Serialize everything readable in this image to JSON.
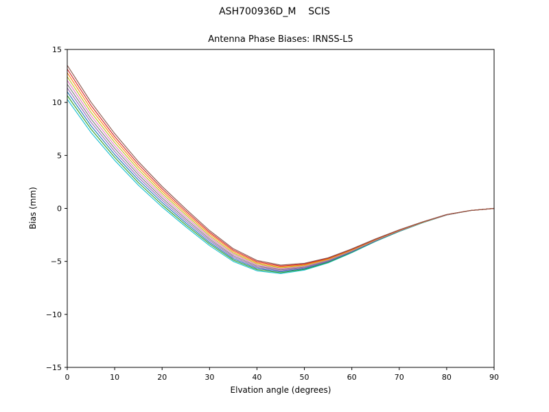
{
  "chart_data": {
    "type": "line",
    "suptitle": "ASH700936D_M    SCIS",
    "title": "Antenna Phase Biases: IRNSS-L5",
    "xlabel": "Elvation angle (degrees)",
    "ylabel": "Bias (mm)",
    "xlim": [
      0,
      90
    ],
    "ylim": [
      -15,
      15
    ],
    "x_ticks": [
      0,
      10,
      20,
      30,
      40,
      50,
      60,
      70,
      80,
      90
    ],
    "y_ticks": [
      -15,
      -10,
      -5,
      0,
      5,
      10,
      15
    ],
    "grid": false,
    "legend": "none",
    "x": [
      0,
      5,
      10,
      15,
      20,
      25,
      30,
      35,
      40,
      45,
      50,
      55,
      60,
      65,
      70,
      75,
      80,
      85,
      90
    ],
    "series": [
      {
        "name": "bias-curve-1",
        "color": "#17becf",
        "values": [
          10.3,
          7.17,
          4.54,
          2.19,
          0.13,
          -1.74,
          -3.51,
          -5.0,
          -5.89,
          -6.15,
          -5.82,
          -5.14,
          -4.18,
          -3.12,
          -2.18,
          -1.34,
          -0.62,
          -0.21,
          0.0
        ]
      },
      {
        "name": "bias-curve-2",
        "color": "#2ca02c",
        "values": [
          10.65,
          7.49,
          4.82,
          2.43,
          0.34,
          -1.56,
          -3.35,
          -4.87,
          -5.78,
          -6.06,
          -5.75,
          -5.09,
          -4.14,
          -3.09,
          -2.16,
          -1.33,
          -0.62,
          -0.2,
          0.0
        ]
      },
      {
        "name": "bias-curve-3",
        "color": "#1f77b4",
        "values": [
          11.0,
          7.8,
          5.09,
          2.68,
          0.56,
          -1.37,
          -3.2,
          -4.74,
          -5.67,
          -5.97,
          -5.68,
          -5.03,
          -4.1,
          -3.07,
          -2.14,
          -1.32,
          -0.61,
          -0.2,
          0.0
        ]
      },
      {
        "name": "bias-curve-4",
        "color": "#9467bd",
        "values": [
          11.37,
          8.13,
          5.38,
          2.93,
          0.78,
          -1.18,
          -3.03,
          -4.6,
          -5.56,
          -5.88,
          -5.61,
          -4.98,
          -4.06,
          -3.04,
          -2.13,
          -1.31,
          -0.61,
          -0.2,
          0.0
        ]
      },
      {
        "name": "bias-curve-5",
        "color": "#7f7f7f",
        "values": [
          11.72,
          8.44,
          5.66,
          3.18,
          0.99,
          -0.99,
          -2.88,
          -4.47,
          -5.45,
          -5.79,
          -5.54,
          -4.93,
          -4.02,
          -3.01,
          -2.11,
          -1.3,
          -0.6,
          -0.2,
          0.0
        ]
      },
      {
        "name": "bias-curve-6",
        "color": "#e377c2",
        "values": [
          12.08,
          8.76,
          5.94,
          3.42,
          1.21,
          -0.81,
          -2.72,
          -4.33,
          -5.35,
          -5.71,
          -5.46,
          -4.87,
          -3.98,
          -2.99,
          -2.09,
          -1.3,
          -0.6,
          -0.2,
          0.0
        ]
      },
      {
        "name": "bias-curve-7",
        "color": "#bcbd22",
        "values": [
          12.43,
          9.07,
          6.22,
          3.67,
          1.42,
          -0.62,
          -2.57,
          -4.2,
          -5.24,
          -5.62,
          -5.39,
          -4.82,
          -3.94,
          -2.96,
          -2.07,
          -1.29,
          -0.59,
          -0.2,
          0.0
        ]
      },
      {
        "name": "bias-curve-8",
        "color": "#ff7f0e",
        "values": [
          12.8,
          9.4,
          6.51,
          3.92,
          1.64,
          -0.43,
          -2.4,
          -4.06,
          -5.13,
          -5.53,
          -5.32,
          -4.77,
          -3.9,
          -2.93,
          -2.06,
          -1.28,
          -0.59,
          -0.2,
          0.0
        ]
      },
      {
        "name": "bias-curve-9",
        "color": "#d62728",
        "values": [
          13.15,
          9.72,
          6.78,
          4.17,
          1.86,
          -0.25,
          -2.25,
          -3.93,
          -5.02,
          -5.44,
          -5.25,
          -4.71,
          -3.86,
          -2.91,
          -2.04,
          -1.27,
          -0.58,
          -0.2,
          0.0
        ]
      },
      {
        "name": "bias-curve-10",
        "color": "#8c564b",
        "values": [
          13.5,
          10.03,
          7.06,
          4.41,
          2.07,
          -0.06,
          -2.09,
          -3.8,
          -4.91,
          -5.35,
          -5.18,
          -4.66,
          -3.82,
          -2.88,
          -2.02,
          -1.26,
          -0.58,
          -0.2,
          0.0
        ]
      }
    ]
  }
}
